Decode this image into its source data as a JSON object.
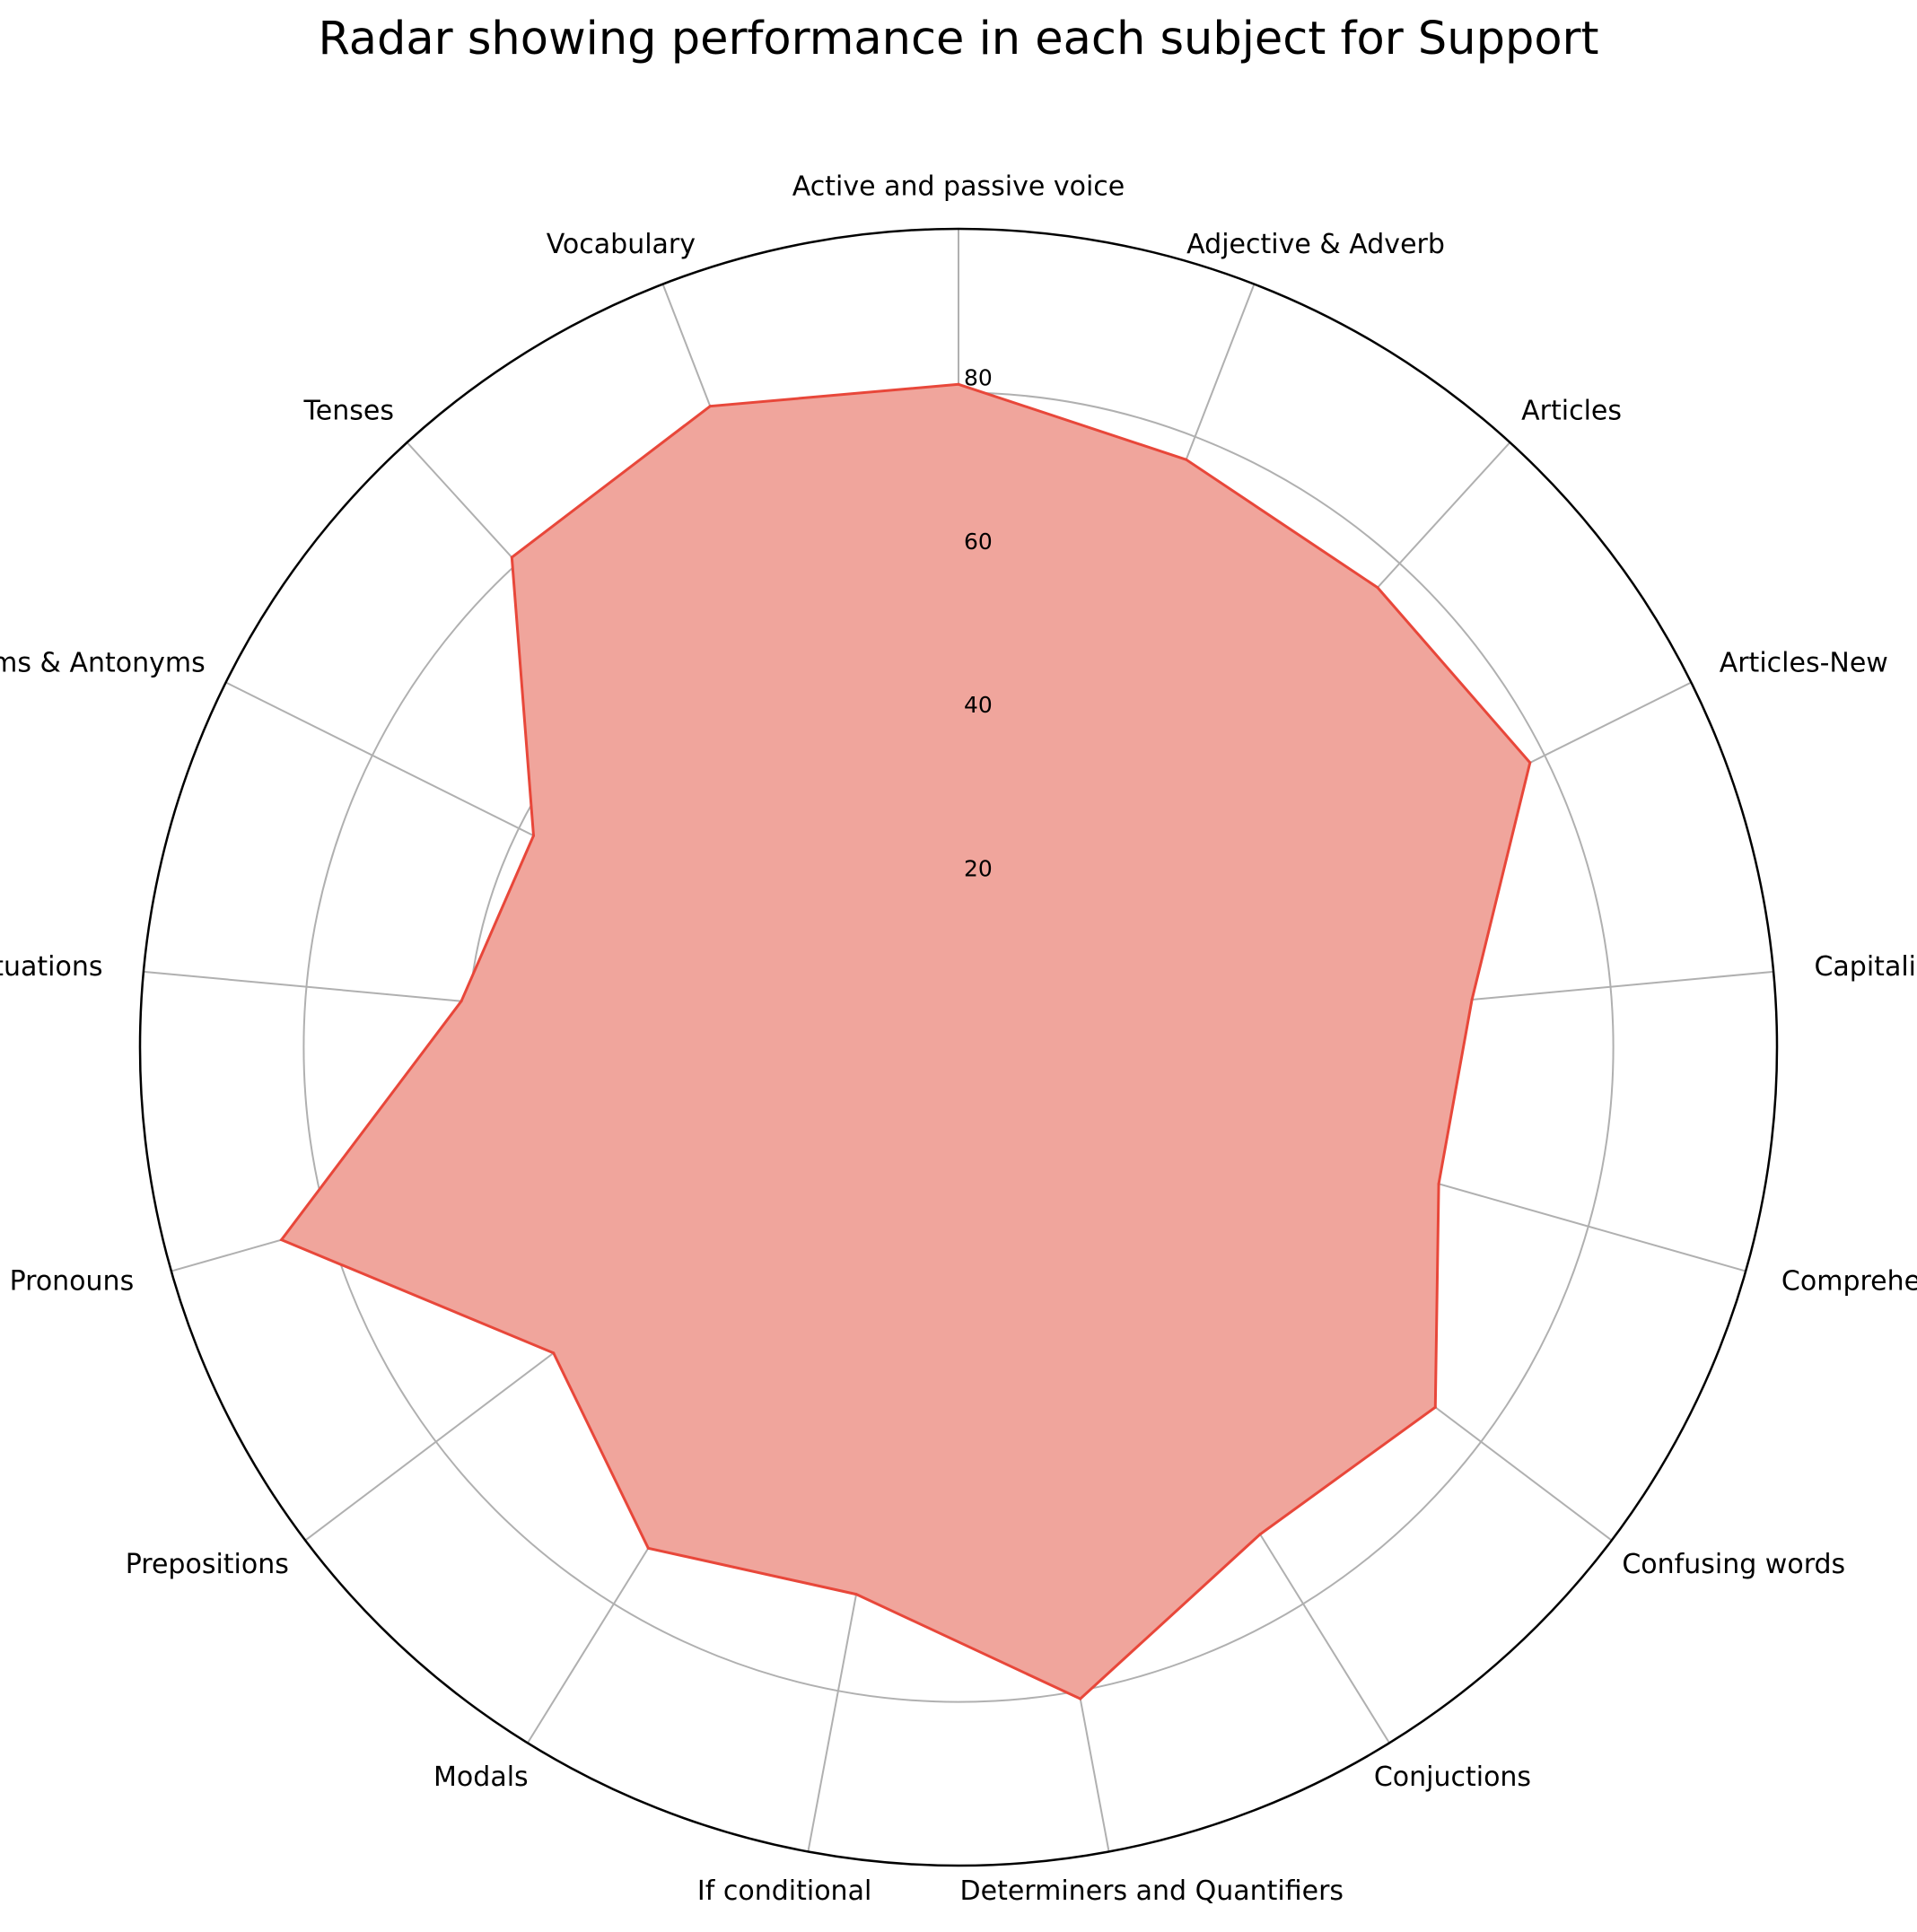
{
  "chart_data": {
    "type": "radar",
    "title": "Radar showing performance in each subject for Support",
    "categories": [
      "Active and passive voice",
      "Adjective & Adverb",
      "Articles",
      "Articles-New",
      "Capitalization",
      "Comprehension",
      "Confusing words",
      "Conjuctions",
      "Determiners and Quantifiers",
      "If conditional",
      "Modals",
      "Prepositions",
      "Pronouns",
      "Pucтuations",
      "Synonyms & Antonyms",
      "Tenses",
      "Vocabulary"
    ],
    "values": [
      81,
      77,
      76,
      78,
      63,
      61,
      73,
      70,
      81,
      68,
      72,
      62,
      86,
      61,
      58,
      81,
      84
    ],
    "rlim": [
      0,
      100
    ],
    "rticks": [
      20,
      40,
      60,
      80
    ],
    "rtick_labels": [
      "20",
      "40",
      "60",
      "80"
    ],
    "grid": true,
    "colors": {
      "fill": "#f0a59c",
      "line": "#e8473a",
      "grid": "#b0b0b0",
      "frame": "#000000"
    }
  }
}
